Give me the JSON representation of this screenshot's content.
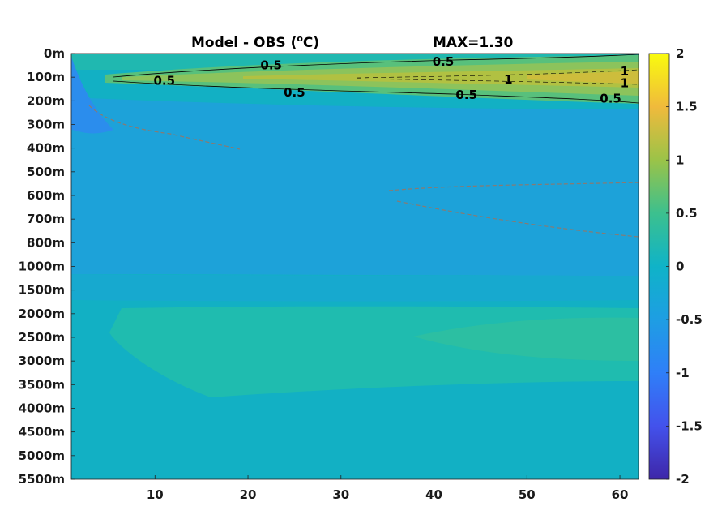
{
  "chart_data": {
    "type": "heatmap",
    "title": "Model - OBS (",
    "title_unit": "C)",
    "title_superscript": "o",
    "max_label": "MAX=1.30",
    "xlabel": "",
    "ylabel": "",
    "x_ticks": [
      "10",
      "20",
      "30",
      "40",
      "50",
      "60"
    ],
    "x_tick_values": [
      10,
      20,
      30,
      40,
      50,
      60
    ],
    "xlim": [
      1,
      62
    ],
    "y_ticks": [
      "0m",
      "100m",
      "200m",
      "300m",
      "400m",
      "500m",
      "600m",
      "700m",
      "800m",
      "1000m",
      "1500m",
      "2000m",
      "2500m",
      "3000m",
      "3500m",
      "4000m",
      "4500m",
      "5000m",
      "5500m"
    ],
    "colorbar": {
      "range": [
        -2,
        2
      ],
      "ticks": [
        "2",
        "1.5",
        "1",
        "0.5",
        "0",
        "-0.5",
        "-1",
        "-1.5",
        "-2"
      ],
      "tick_values": [
        2,
        1.5,
        1,
        0.5,
        0,
        -0.5,
        -1,
        -1.5,
        -2
      ],
      "colormap": "parula"
    },
    "contour_labels": [
      {
        "text": "0.5",
        "x": 22.5,
        "depth_index": 0.5
      },
      {
        "text": "0.5",
        "x": 11,
        "depth_index": 1.15
      },
      {
        "text": "0.5",
        "x": 25,
        "depth_index": 1.65
      },
      {
        "text": "0.5",
        "x": 41,
        "depth_index": 0.35
      },
      {
        "text": "0.5",
        "x": 43.5,
        "depth_index": 1.75
      },
      {
        "text": "0.5",
        "x": 59,
        "depth_index": 1.9
      },
      {
        "text": "1",
        "x": 48,
        "depth_index": 1.1
      },
      {
        "text": "1",
        "x": 60.5,
        "depth_index": 0.75
      },
      {
        "text": "1",
        "x": 60.5,
        "depth_index": 1.25
      }
    ],
    "field_summary": [
      {
        "depth": "0m",
        "value": 0.05
      },
      {
        "depth": "100m",
        "value": 0.7
      },
      {
        "depth": "200m",
        "value": 0.1
      },
      {
        "depth": "300m",
        "value": -0.3
      },
      {
        "depth": "400m",
        "value": -0.35
      },
      {
        "depth": "500m",
        "value": -0.35
      },
      {
        "depth": "600m",
        "value": -0.3
      },
      {
        "depth": "700m",
        "value": -0.3
      },
      {
        "depth": "800m",
        "value": -0.25
      },
      {
        "depth": "1000m",
        "value": -0.1
      },
      {
        "depth": "1500m",
        "value": 0.0
      },
      {
        "depth": "2000m",
        "value": 0.05
      },
      {
        "depth": "2500m",
        "value": 0.1
      },
      {
        "depth": "3000m",
        "value": 0.05
      },
      {
        "depth": "3500m",
        "value": 0.0
      },
      {
        "depth": "4000m",
        "value": 0.0
      },
      {
        "depth": "4500m",
        "value": -0.05
      },
      {
        "depth": "5000m",
        "value": 0.0
      },
      {
        "depth": "5500m",
        "value": 0.05
      }
    ],
    "grid": false
  }
}
